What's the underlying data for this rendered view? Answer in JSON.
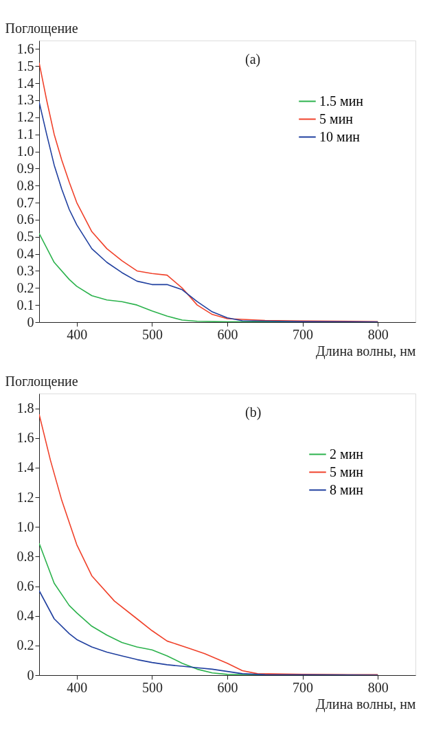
{
  "chart_data": [
    {
      "type": "line",
      "ylabel": "Поглощение",
      "xlabel": "Длина волны, нм",
      "annotations": [
        "(a)"
      ],
      "legend": "top right",
      "grid": false,
      "xlim": [
        350,
        850
      ],
      "xticks": [
        400,
        500,
        600,
        700,
        800
      ],
      "ylim": [
        0,
        1.65
      ],
      "yticks": [
        0,
        0.1,
        0.2,
        0.3,
        0.4,
        0.5,
        0.6,
        0.7,
        0.8,
        0.9,
        {
          "value": 1,
          "label": "1.0"
        },
        1.1,
        1.2,
        1.3,
        1.4,
        1.5,
        1.6
      ],
      "series": [
        {
          "name": "1.5 мин",
          "color": "#2bb24c",
          "x": [
            350,
            370,
            390,
            400,
            420,
            440,
            460,
            480,
            500,
            520,
            540,
            560,
            600,
            800
          ],
          "values": [
            0.52,
            0.35,
            0.25,
            0.21,
            0.155,
            0.13,
            0.12,
            0.1,
            0.065,
            0.035,
            0.012,
            0.005,
            0.002,
            0
          ]
        },
        {
          "name": "5 мин",
          "color": "#f0412a",
          "x": [
            350,
            360,
            370,
            380,
            390,
            400,
            420,
            440,
            460,
            480,
            500,
            520,
            540,
            560,
            580,
            600,
            650,
            700,
            800
          ],
          "values": [
            1.52,
            1.3,
            1.1,
            0.95,
            0.82,
            0.7,
            0.53,
            0.43,
            0.36,
            0.3,
            0.285,
            0.275,
            0.2,
            0.1,
            0.045,
            0.02,
            0.01,
            0.007,
            0.003
          ]
        },
        {
          "name": "10 мин",
          "color": "#1f3f9f",
          "x": [
            350,
            360,
            370,
            380,
            390,
            400,
            420,
            440,
            460,
            480,
            500,
            520,
            540,
            560,
            580,
            600,
            620,
            700,
            800
          ],
          "values": [
            1.29,
            1.1,
            0.92,
            0.78,
            0.66,
            0.57,
            0.43,
            0.35,
            0.29,
            0.24,
            0.22,
            0.22,
            0.19,
            0.12,
            0.06,
            0.025,
            0.008,
            0.003,
            0.001
          ]
        }
      ]
    },
    {
      "type": "line",
      "ylabel": "Поглощение",
      "xlabel": "Длина волны, нм",
      "annotations": [
        "(b)"
      ],
      "legend": "top right",
      "grid": false,
      "xlim": [
        350,
        850
      ],
      "xticks": [
        400,
        500,
        600,
        700,
        800
      ],
      "ylim": [
        0,
        1.9
      ],
      "yticks": [
        0,
        0.2,
        0.4,
        0.6,
        0.8,
        {
          "value": 1,
          "label": "1.0"
        },
        1.2,
        1.4,
        1.6,
        1.8
      ],
      "series": [
        {
          "name": "2 мин",
          "color": "#2bb24c",
          "x": [
            350,
            370,
            390,
            400,
            420,
            440,
            460,
            480,
            500,
            520,
            540,
            560,
            580,
            600,
            800
          ],
          "values": [
            0.89,
            0.62,
            0.47,
            0.42,
            0.33,
            0.27,
            0.22,
            0.19,
            0.17,
            0.13,
            0.08,
            0.04,
            0.015,
            0.005,
            0
          ]
        },
        {
          "name": "5 мин",
          "color": "#f0412a",
          "x": [
            350,
            365,
            380,
            400,
            420,
            450,
            480,
            500,
            520,
            550,
            570,
            600,
            620,
            640,
            700,
            800
          ],
          "values": [
            1.76,
            1.45,
            1.18,
            0.88,
            0.67,
            0.5,
            0.38,
            0.3,
            0.23,
            0.18,
            0.145,
            0.08,
            0.03,
            0.01,
            0.005,
            0.003
          ]
        },
        {
          "name": "8 мин",
          "color": "#1f3f9f",
          "x": [
            350,
            370,
            390,
            400,
            420,
            440,
            460,
            480,
            500,
            520,
            540,
            560,
            580,
            600,
            620,
            650,
            800
          ],
          "values": [
            0.57,
            0.38,
            0.28,
            0.24,
            0.19,
            0.155,
            0.13,
            0.105,
            0.085,
            0.07,
            0.06,
            0.05,
            0.04,
            0.025,
            0.01,
            0.003,
            0
          ]
        }
      ]
    }
  ]
}
